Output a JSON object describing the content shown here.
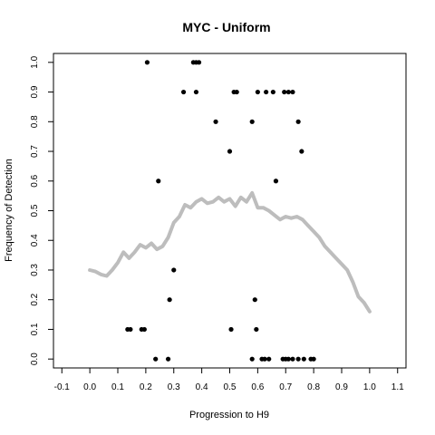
{
  "chart_data": {
    "type": "scatter",
    "title": "MYC - Uniform",
    "xlabel": "Progression to H9",
    "ylabel": "Frequency of Detection",
    "xlim": [
      -0.13,
      1.13
    ],
    "ylim": [
      -0.03,
      1.03
    ],
    "x_ticks": [
      "-0.1",
      "0.0",
      "0.1",
      "0.2",
      "0.3",
      "0.4",
      "0.5",
      "0.6",
      "0.7",
      "0.8",
      "0.9",
      "1.0",
      "1.1"
    ],
    "y_ticks": [
      "0.0",
      "0.1",
      "0.2",
      "0.3",
      "0.4",
      "0.5",
      "0.6",
      "0.7",
      "0.8",
      "0.9",
      "1.0"
    ],
    "grid": false,
    "legend": "none",
    "colors": {
      "points": "#000000",
      "trend": "#bdbdbd"
    },
    "points": [
      {
        "x": 0.205,
        "y": 1.0
      },
      {
        "x": 0.37,
        "y": 1.0
      },
      {
        "x": 0.38,
        "y": 1.0
      },
      {
        "x": 0.39,
        "y": 1.0
      },
      {
        "x": 0.335,
        "y": 0.9
      },
      {
        "x": 0.38,
        "y": 0.9
      },
      {
        "x": 0.515,
        "y": 0.9
      },
      {
        "x": 0.525,
        "y": 0.9
      },
      {
        "x": 0.6,
        "y": 0.9
      },
      {
        "x": 0.63,
        "y": 0.9
      },
      {
        "x": 0.655,
        "y": 0.9
      },
      {
        "x": 0.695,
        "y": 0.9
      },
      {
        "x": 0.71,
        "y": 0.9
      },
      {
        "x": 0.725,
        "y": 0.9
      },
      {
        "x": 0.45,
        "y": 0.8
      },
      {
        "x": 0.58,
        "y": 0.8
      },
      {
        "x": 0.745,
        "y": 0.8
      },
      {
        "x": 0.5,
        "y": 0.7
      },
      {
        "x": 0.757,
        "y": 0.7
      },
      {
        "x": 0.245,
        "y": 0.6
      },
      {
        "x": 0.665,
        "y": 0.6
      },
      {
        "x": 0.3,
        "y": 0.3
      },
      {
        "x": 0.285,
        "y": 0.2
      },
      {
        "x": 0.59,
        "y": 0.2
      },
      {
        "x": 0.135,
        "y": 0.1
      },
      {
        "x": 0.145,
        "y": 0.1
      },
      {
        "x": 0.185,
        "y": 0.1
      },
      {
        "x": 0.195,
        "y": 0.1
      },
      {
        "x": 0.505,
        "y": 0.1
      },
      {
        "x": 0.595,
        "y": 0.1
      },
      {
        "x": 0.235,
        "y": 0.0
      },
      {
        "x": 0.28,
        "y": 0.0
      },
      {
        "x": 0.58,
        "y": 0.0
      },
      {
        "x": 0.615,
        "y": 0.0
      },
      {
        "x": 0.625,
        "y": 0.0
      },
      {
        "x": 0.64,
        "y": 0.0
      },
      {
        "x": 0.69,
        "y": 0.0
      },
      {
        "x": 0.7,
        "y": 0.0
      },
      {
        "x": 0.71,
        "y": 0.0
      },
      {
        "x": 0.725,
        "y": 0.0
      },
      {
        "x": 0.745,
        "y": 0.0
      },
      {
        "x": 0.765,
        "y": 0.0
      },
      {
        "x": 0.79,
        "y": 0.0
      },
      {
        "x": 0.8,
        "y": 0.0
      }
    ],
    "trend": {
      "x": [
        0.0,
        0.02,
        0.04,
        0.06,
        0.08,
        0.1,
        0.12,
        0.14,
        0.16,
        0.18,
        0.2,
        0.22,
        0.24,
        0.26,
        0.28,
        0.3,
        0.32,
        0.34,
        0.36,
        0.38,
        0.4,
        0.42,
        0.44,
        0.46,
        0.48,
        0.5,
        0.52,
        0.54,
        0.56,
        0.58,
        0.6,
        0.62,
        0.64,
        0.66,
        0.68,
        0.7,
        0.72,
        0.74,
        0.76,
        0.78,
        0.8,
        0.82,
        0.84,
        0.86,
        0.88,
        0.9,
        0.92,
        0.94,
        0.96,
        0.98,
        1.0
      ],
      "y": [
        0.3,
        0.295,
        0.285,
        0.28,
        0.3,
        0.325,
        0.36,
        0.34,
        0.36,
        0.385,
        0.375,
        0.39,
        0.37,
        0.38,
        0.41,
        0.46,
        0.48,
        0.52,
        0.51,
        0.53,
        0.54,
        0.525,
        0.53,
        0.545,
        0.53,
        0.54,
        0.515,
        0.545,
        0.53,
        0.56,
        0.51,
        0.51,
        0.5,
        0.485,
        0.47,
        0.48,
        0.475,
        0.48,
        0.47,
        0.45,
        0.43,
        0.41,
        0.38,
        0.36,
        0.34,
        0.32,
        0.3,
        0.26,
        0.21,
        0.19,
        0.16
      ]
    }
  }
}
